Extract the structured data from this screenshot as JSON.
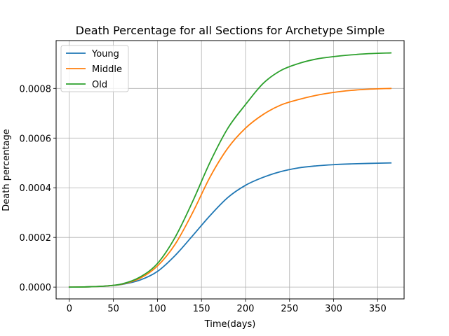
{
  "chart_data": {
    "type": "line",
    "title": "Death Percentage for all Sections for Archetype Simple",
    "xlabel": "Time(days)",
    "ylabel": "Death percentage",
    "xlim": [
      -15,
      380
    ],
    "ylim": [
      -4.75e-05,
      0.0009925
    ],
    "xticks": [
      0,
      50,
      100,
      150,
      200,
      250,
      300,
      350
    ],
    "xtick_labels": [
      "0",
      "50",
      "100",
      "150",
      "200",
      "250",
      "300",
      "350"
    ],
    "yticks": [
      0.0,
      0.0002,
      0.0004,
      0.0006,
      0.0008
    ],
    "ytick_labels": [
      "0.0000",
      "0.0002",
      "0.0004",
      "0.0006",
      "0.0008"
    ],
    "grid": true,
    "legend_position": "top-left",
    "series": [
      {
        "name": "Young",
        "color": "#1f77b4",
        "x": [
          0,
          20,
          40,
          60,
          80,
          100,
          120,
          140,
          160,
          180,
          200,
          220,
          240,
          260,
          280,
          300,
          320,
          340,
          365
        ],
        "values": [
          0.0,
          1e-06,
          4e-06,
          1.1e-05,
          2.8e-05,
          6.3e-05,
          0.000127,
          0.000207,
          0.000289,
          0.000361,
          0.00041,
          0.000442,
          0.000465,
          0.00048,
          0.000488,
          0.000493,
          0.000496,
          0.000498,
          0.0005
        ]
      },
      {
        "name": "Middle",
        "color": "#ff7f0e",
        "x": [
          0,
          20,
          40,
          60,
          80,
          100,
          120,
          140,
          160,
          180,
          200,
          220,
          240,
          260,
          280,
          300,
          320,
          340,
          365
        ],
        "values": [
          0.0,
          1e-06,
          4e-06,
          1.2e-05,
          3.5e-05,
          8.5e-05,
          0.000172,
          0.0003,
          0.000445,
          0.00056,
          0.00064,
          0.000695,
          0.000733,
          0.000755,
          0.000772,
          0.000784,
          0.000792,
          0.000797,
          0.0008
        ]
      },
      {
        "name": "Old",
        "color": "#2ca02c",
        "x": [
          0,
          20,
          40,
          60,
          80,
          100,
          120,
          140,
          160,
          180,
          200,
          220,
          240,
          260,
          280,
          300,
          320,
          340,
          365
        ],
        "values": [
          0.0,
          1e-06,
          4e-06,
          1.3e-05,
          4e-05,
          9.5e-05,
          0.0002,
          0.000345,
          0.000505,
          0.00064,
          0.000735,
          0.00082,
          0.000872,
          0.0009,
          0.000918,
          0.000928,
          0.000935,
          0.00094,
          0.000943
        ]
      }
    ]
  }
}
